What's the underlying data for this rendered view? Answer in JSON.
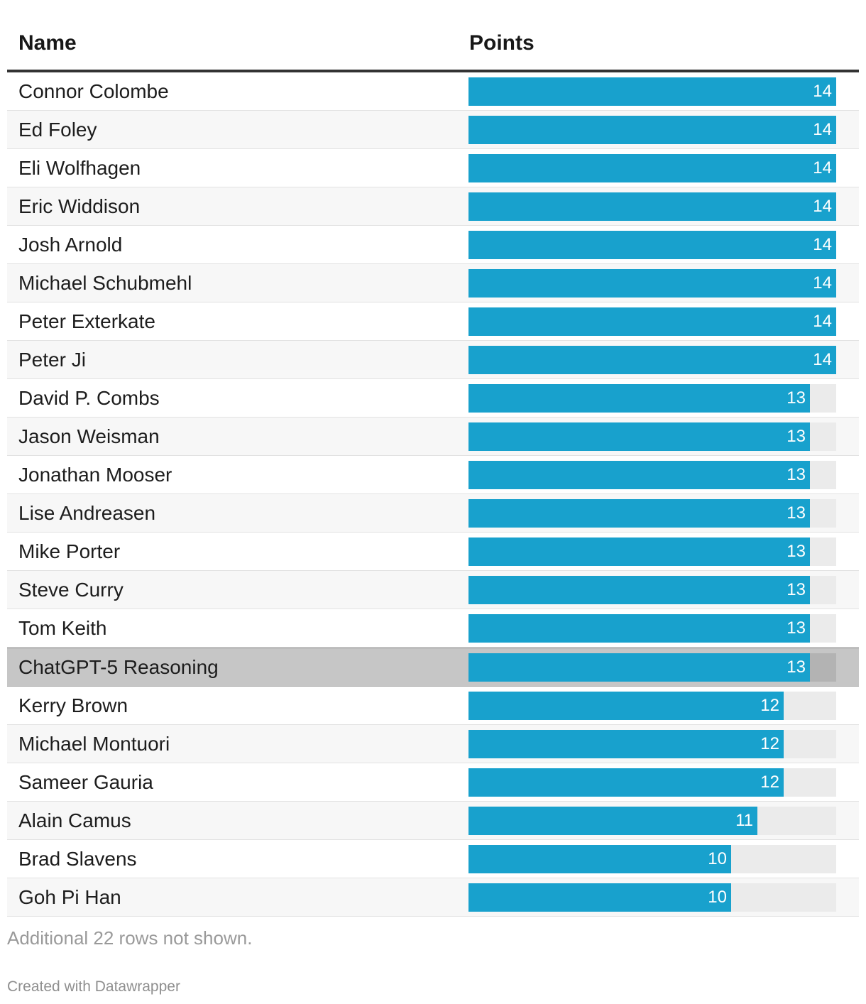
{
  "chart_data": {
    "type": "table",
    "columns": [
      "Name",
      "Points"
    ],
    "max_points": 14,
    "bar_color": "#18a1cd",
    "highlight_row": "ChatGPT-5 Reasoning",
    "rows": [
      {
        "name": "Connor Colombe",
        "points": 14
      },
      {
        "name": "Ed Foley",
        "points": 14
      },
      {
        "name": "Eli Wolfhagen",
        "points": 14
      },
      {
        "name": "Eric Widdison",
        "points": 14
      },
      {
        "name": "Josh Arnold",
        "points": 14
      },
      {
        "name": "Michael Schubmehl",
        "points": 14
      },
      {
        "name": "Peter Exterkate",
        "points": 14
      },
      {
        "name": "Peter Ji",
        "points": 14
      },
      {
        "name": "David P. Combs",
        "points": 13
      },
      {
        "name": "Jason Weisman",
        "points": 13
      },
      {
        "name": "Jonathan Mooser",
        "points": 13
      },
      {
        "name": "Lise Andreasen",
        "points": 13
      },
      {
        "name": "Mike Porter",
        "points": 13
      },
      {
        "name": "Steve Curry",
        "points": 13
      },
      {
        "name": "Tom Keith",
        "points": 13
      },
      {
        "name": "ChatGPT-5 Reasoning",
        "points": 13
      },
      {
        "name": "Kerry Brown",
        "points": 12
      },
      {
        "name": "Michael Montuori",
        "points": 12
      },
      {
        "name": "Sameer Gauria",
        "points": 12
      },
      {
        "name": "Alain Camus",
        "points": 11
      },
      {
        "name": "Brad Slavens",
        "points": 10
      },
      {
        "name": "Goh Pi Han",
        "points": 10
      }
    ],
    "notes": "Additional 22 rows not shown."
  },
  "footer": {
    "credit": "Created with Datawrapper"
  }
}
